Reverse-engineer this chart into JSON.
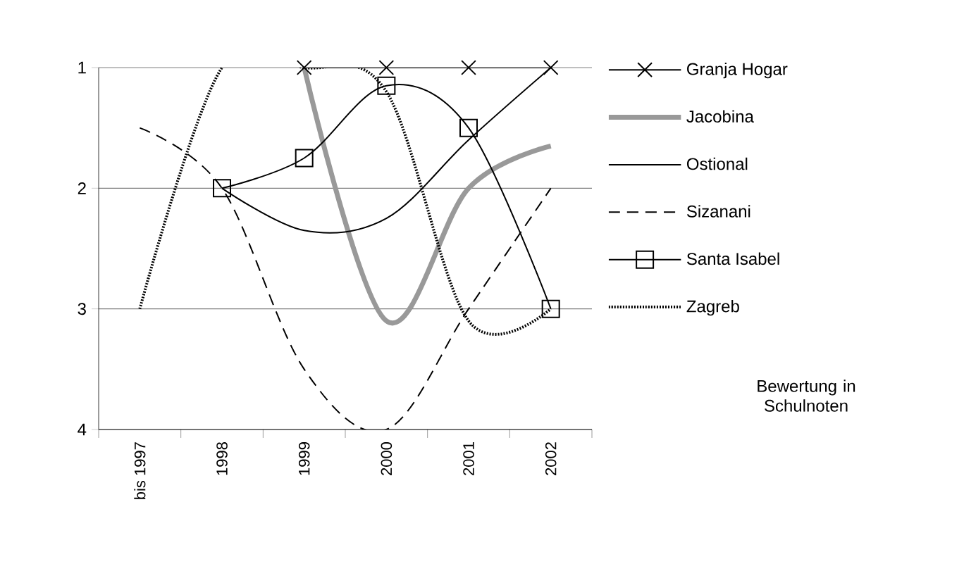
{
  "chart_data": {
    "type": "line",
    "categories": [
      "bis 1997",
      "1998",
      "1999",
      "2000",
      "2001",
      "2002"
    ],
    "series": [
      {
        "name": "Granja Hogar",
        "color": "#000000",
        "marker": "cross",
        "line_style": "solid",
        "values": [
          null,
          null,
          1,
          1,
          1,
          1
        ]
      },
      {
        "name": "Jacobina",
        "color": "#999999",
        "marker": "none",
        "line_style": "solid",
        "values": [
          null,
          null,
          1,
          3.1,
          2,
          1.65
        ]
      },
      {
        "name": "Ostional",
        "color": "#000000",
        "marker": "none",
        "line_style": "solid",
        "values": [
          null,
          2,
          2.35,
          2.25,
          1.6,
          1
        ]
      },
      {
        "name": "Sizanani",
        "color": "#000000",
        "marker": "none",
        "line_style": "dashed",
        "values": [
          1.5,
          2,
          3.5,
          4,
          3,
          2
        ]
      },
      {
        "name": "Santa Isabel",
        "color": "#000000",
        "marker": "square",
        "line_style": "solid",
        "values": [
          null,
          2,
          1.75,
          1.15,
          1.5,
          3
        ]
      },
      {
        "name": "Zagreb",
        "color": "#000000",
        "marker": "none",
        "line_style": "dotted",
        "values": [
          3,
          1,
          1,
          1.2,
          3.1,
          3
        ]
      }
    ],
    "ylim": [
      4,
      1
    ],
    "yticks": [
      1,
      2,
      3,
      4
    ],
    "grid": "y",
    "legend": "right",
    "annotations": [
      "Bewertung in Schulnoten"
    ]
  }
}
